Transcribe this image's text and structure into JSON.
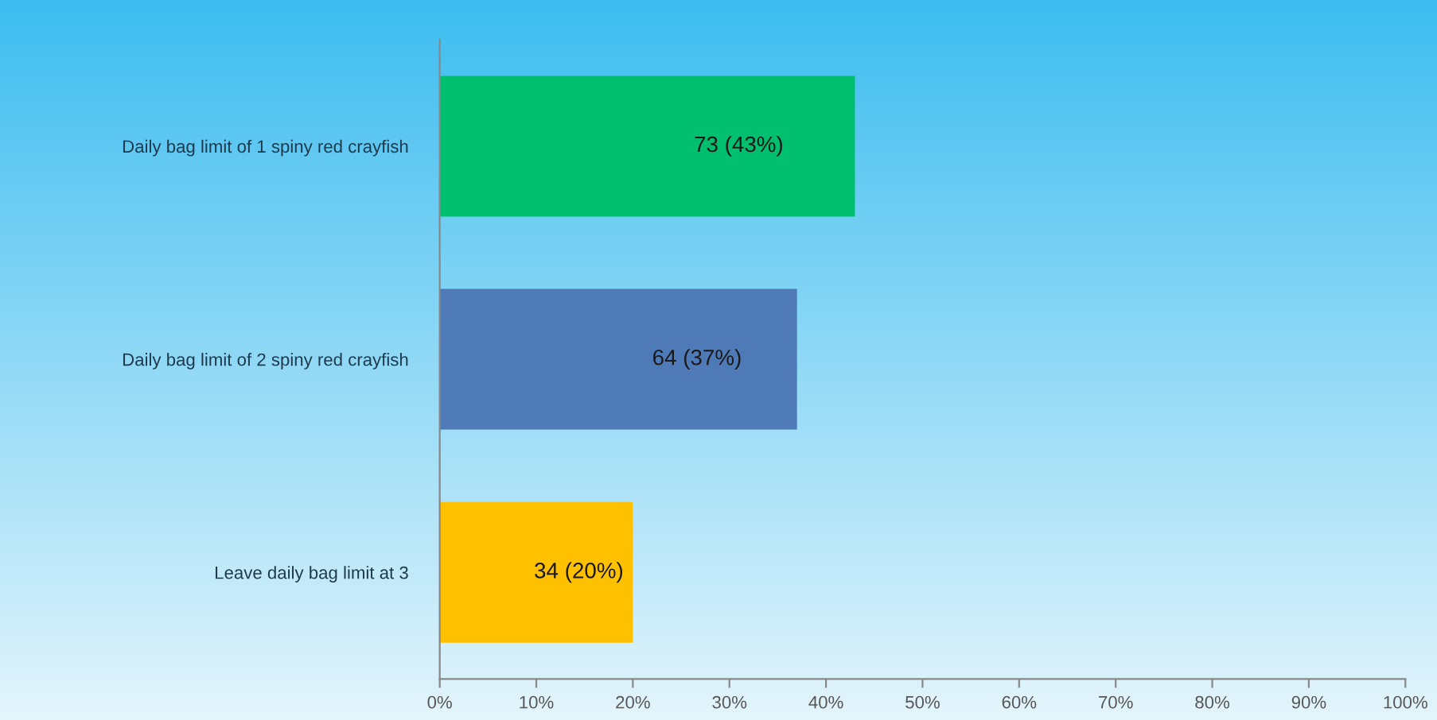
{
  "chart_data": {
    "type": "bar",
    "orientation": "horizontal",
    "categories": [
      "Daily bag limit of 1 spiny red crayfish",
      "Daily bag limit of 2 spiny red crayfish",
      "Leave daily bag limit at 3"
    ],
    "values": [
      43,
      37,
      20
    ],
    "colors": [
      "#00c070",
      "#4f7ab8",
      "#ffc000"
    ],
    "value_labels": [
      "73 (43%)",
      "64 (37%)",
      "34 (20%)"
    ],
    "xlim": [
      0,
      100
    ],
    "xticks": [
      {
        "value": 0,
        "label": "0%"
      },
      {
        "value": 10,
        "label": "10%"
      },
      {
        "value": 20,
        "label": "20%"
      },
      {
        "value": 30,
        "label": "30%"
      },
      {
        "value": 40,
        "label": "40%"
      },
      {
        "value": 50,
        "label": "50%"
      },
      {
        "value": 60,
        "label": "60%"
      },
      {
        "value": 70,
        "label": "70%"
      },
      {
        "value": 80,
        "label": "80%"
      },
      {
        "value": 90,
        "label": "90%"
      },
      {
        "value": 100,
        "label": "100%"
      }
    ],
    "grid": false,
    "legend": false
  }
}
